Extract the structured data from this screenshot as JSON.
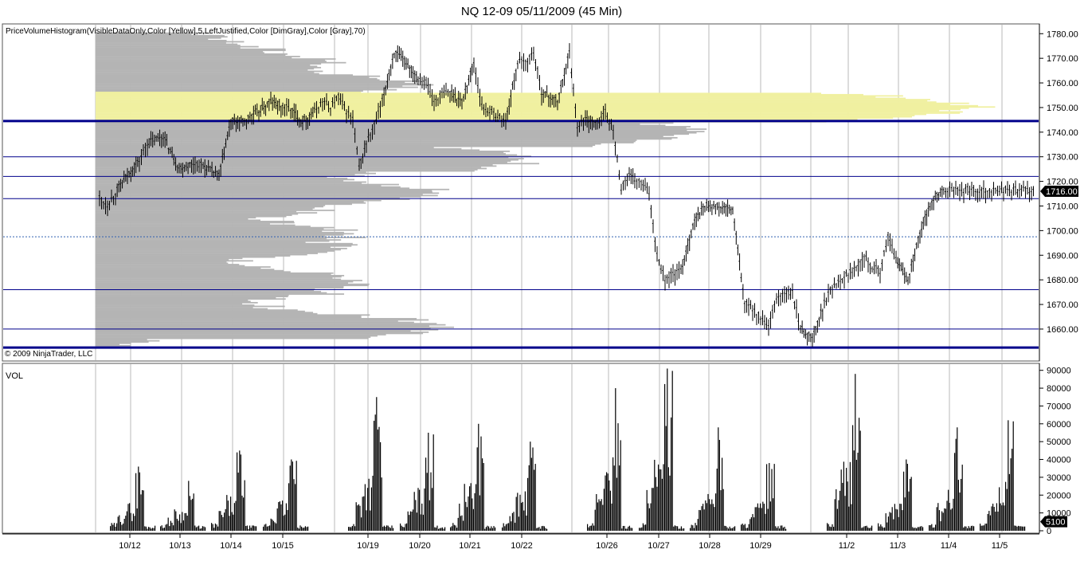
{
  "window": {
    "title": "NQ 12-09  05/11/2009 (45 Min)",
    "indicator_label": "PriceVolumeHistogram(VisibleDataOnly,Color [Yellow],5,LeftJustified,Color [DimGray],Color [Gray],70)",
    "copyright": "© 2009 NinjaTrader, LLC",
    "vol_label": "VOL",
    "price_badge": "1716.00",
    "vol_badge": "5100"
  },
  "colors": {
    "histogram": "#b4b4b4",
    "value_area": "#f0f0a0",
    "level_line": "#00008b",
    "price_bars": "#000000",
    "volume_bars": "#000000"
  },
  "chart_data": [
    {
      "type": "line",
      "name": "price",
      "ylim": [
        1648,
        1783
      ],
      "yticks": [
        1660,
        1670,
        1680,
        1690,
        1700,
        1710,
        1720,
        1730,
        1740,
        1750,
        1760,
        1770,
        1780
      ],
      "xticks": [
        "10/12",
        "10/13",
        "10/14",
        "10/15",
        "10/19",
        "10/20",
        "10/21",
        "10/22",
        "10/26",
        "10/27",
        "10/28",
        "10/29",
        "11/2",
        "11/3",
        "11/4",
        "11/5"
      ],
      "last_price": 1716.0,
      "horizontal_levels": [
        {
          "price": 1744.5,
          "style": "thick"
        },
        {
          "price": 1730,
          "style": "thin"
        },
        {
          "price": 1722,
          "style": "thin"
        },
        {
          "price": 1713,
          "style": "thin"
        },
        {
          "price": 1697.5,
          "style": "dotted"
        },
        {
          "price": 1676,
          "style": "thin"
        },
        {
          "price": 1660,
          "style": "thin"
        },
        {
          "price": 1652.5,
          "style": "thick"
        }
      ],
      "value_area": [
        1744,
        1756
      ],
      "series": [
        {
          "x": [
            0,
            10,
            20,
            35,
            50,
            60,
            80,
            100,
            120,
            130,
            150,
            165,
            180,
            200,
            215,
            230,
            240,
            255,
            270,
            280,
            290,
            300,
            310,
            318,
            326,
            335,
            345,
            355,
            370,
            385,
            400,
            410,
            420,
            430,
            440,
            455,
            470,
            480,
            490,
            500,
            510,
            525,
            535,
            545,
            555,
            575,
            590,
            600,
            610,
            625,
            635,
            645,
            655,
            665,
            672,
            680,
            690,
            700,
            710,
            720,
            730,
            745,
            760,
            780,
            795,
            810,
            820,
            830,
            840,
            850,
            860,
            870,
            880,
            895,
            910,
            920,
            930,
            940,
            950,
            960,
            970,
            980,
            990,
            1000,
            1015,
            1030,
            1045,
            1060,
            1070,
            1080,
            1090,
            1100,
            1110,
            1120,
            1130,
            1140,
            1150,
            1160,
            1170,
            1175
          ],
          "y": [
            1713,
            1710,
            1715,
            1722,
            1728,
            1735,
            1738,
            1725,
            1727,
            1726,
            1722,
            1744,
            1744,
            1748,
            1752,
            1750,
            1749,
            1744,
            1748,
            1752,
            1750,
            1754,
            1748,
            1745,
            1725,
            1735,
            1742,
            1752,
            1772,
            1768,
            1762,
            1760,
            1752,
            1755,
            1756,
            1752,
            1768,
            1750,
            1748,
            1746,
            1744,
            1768,
            1768,
            1772,
            1756,
            1752,
            1772,
            1742,
            1745,
            1743,
            1748,
            1740,
            1717,
            1722,
            1720,
            1719,
            1715,
            1690,
            1680,
            1682,
            1683,
            1702,
            1710,
            1709,
            1708,
            1670,
            1668,
            1664,
            1660,
            1672,
            1674,
            1674,
            1660,
            1656,
            1670,
            1677,
            1680,
            1682,
            1685,
            1690,
            1685,
            1683,
            1697,
            1688,
            1680,
            1698,
            1712,
            1716,
            1716,
            1716,
            1716,
            1716,
            1716,
            1716,
            1716,
            1716,
            1716,
            1716,
            1716,
            1716
          ]
        }
      ]
    },
    {
      "type": "bar",
      "name": "volume",
      "ylim": [
        0,
        93000
      ],
      "yticks": [
        0,
        10000,
        20000,
        30000,
        40000,
        50000,
        60000,
        70000,
        80000,
        90000
      ],
      "last_volume": 5100,
      "sessions": [
        {
          "label": "10/12",
          "peak": 36000
        },
        {
          "label": "10/13",
          "peak": 28000
        },
        {
          "label": "10/14",
          "peak": 45000
        },
        {
          "label": "10/15",
          "peak": 40000
        },
        {
          "label": "10/19",
          "peak": 75000
        },
        {
          "label": "10/20",
          "peak": 55000
        },
        {
          "label": "10/21",
          "peak": 60000
        },
        {
          "label": "10/22",
          "peak": 50000
        },
        {
          "label": "10/26",
          "peak": 80000
        },
        {
          "label": "10/27",
          "peak": 91000
        },
        {
          "label": "10/28",
          "peak": 58000
        },
        {
          "label": "10/29",
          "peak": 38000
        },
        {
          "label": "11/2",
          "peak": 88000
        },
        {
          "label": "11/3",
          "peak": 40000
        },
        {
          "label": "11/4",
          "peak": 58000
        },
        {
          "label": "11/5",
          "peak": 62000
        }
      ]
    }
  ]
}
